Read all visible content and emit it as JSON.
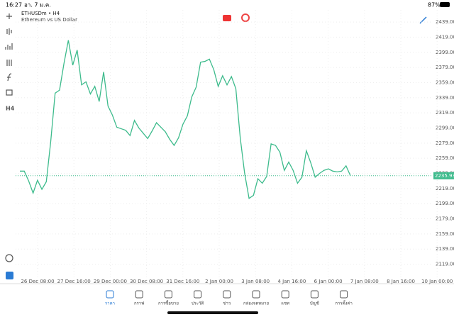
{
  "status_bar": {
    "time": "16:27",
    "date": "อา. 7 ม.ค.",
    "battery": "87%"
  },
  "header": {
    "symbol": "ETHUSDm • H4",
    "description": "Ethereum vs US Dollar"
  },
  "toolbar": {
    "timeframe": "H4"
  },
  "chart_data": {
    "type": "line",
    "x_labels": [
      "26 Dec 08:00",
      "27 Dec 16:00",
      "29 Dec 00:00",
      "30 Dec 08:00",
      "31 Dec 16:00",
      "2 Jan 00:00",
      "3 Jan 08:00",
      "4 Jan 16:00",
      "6 Jan 00:00",
      "7 Jan 08:00",
      "8 Jan 16:00",
      "10 Jan 00:00"
    ],
    "series": [
      {
        "name": "ETHUSDm",
        "color": "#3dbb8c",
        "values": [
          2242,
          2242,
          2229,
          2213,
          2230,
          2218,
          2228,
          2281,
          2345,
          2349,
          2384,
          2415,
          2382,
          2402,
          2356,
          2360,
          2344,
          2354,
          2334,
          2373,
          2328,
          2316,
          2300,
          2298,
          2296,
          2289,
          2309,
          2299,
          2292,
          2285,
          2295,
          2306,
          2300,
          2294,
          2284,
          2276,
          2286,
          2304,
          2315,
          2340,
          2353,
          2386,
          2387,
          2390,
          2376,
          2354,
          2368,
          2356,
          2367,
          2351,
          2286,
          2239,
          2206,
          2210,
          2232,
          2226,
          2235,
          2278,
          2276,
          2267,
          2243,
          2254,
          2243,
          2226,
          2234,
          2269,
          2253,
          2234,
          2239,
          2243,
          2245,
          2242,
          2241,
          2242,
          2249,
          2236
        ]
      }
    ],
    "current_price": {
      "value": 2235.93,
      "label": "2235.93"
    },
    "ylim": [
      2098,
      2455
    ],
    "yticks": [
      {
        "value": 2119,
        "label": "2119.00"
      },
      {
        "value": 2139,
        "label": "2139.00"
      },
      {
        "value": 2159,
        "label": "2159.00"
      },
      {
        "value": 2179,
        "label": "2179.00"
      },
      {
        "value": 2199,
        "label": "2199.00"
      },
      {
        "value": 2219,
        "label": "2219.00"
      },
      {
        "value": 2239,
        "label": "2239.00"
      },
      {
        "value": 2259,
        "label": "2259.00"
      },
      {
        "value": 2279,
        "label": "2279.00"
      },
      {
        "value": 2299,
        "label": "2299.00"
      },
      {
        "value": 2319,
        "label": "2319.00"
      },
      {
        "value": 2339,
        "label": "2339.00"
      },
      {
        "value": 2359,
        "label": "2359.00"
      },
      {
        "value": 2379,
        "label": "2379.00"
      },
      {
        "value": 2399,
        "label": "2399.00"
      },
      {
        "value": 2419,
        "label": "2419.00"
      },
      {
        "value": 2439,
        "label": "2439.00"
      }
    ],
    "grid": true
  },
  "tabs": [
    "ราคา",
    "กราฟ",
    "การซื้อขาย",
    "ประวัติ",
    "ข่าว",
    "กล่องจดหมาย",
    "แชท",
    "บัญชี",
    "การตั้งค่า"
  ]
}
